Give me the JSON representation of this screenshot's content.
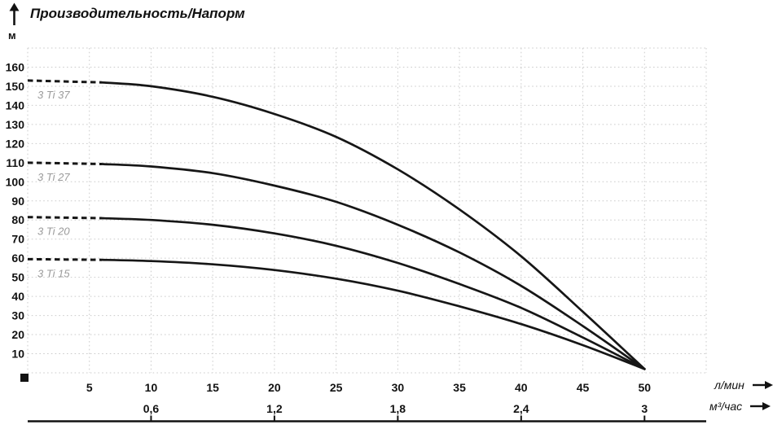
{
  "header": {
    "title": "Производительность/Напорм",
    "y_axis_unit": "м"
  },
  "axes": {
    "y_ticks": [
      10,
      20,
      30,
      40,
      50,
      60,
      70,
      80,
      90,
      100,
      110,
      120,
      130,
      140,
      150,
      160
    ],
    "x1": {
      "unit": "л/мин",
      "ticks": [
        5,
        10,
        15,
        20,
        25,
        30,
        35,
        40,
        45,
        50
      ]
    },
    "x2": {
      "unit": "м³/час",
      "ticks": [
        {
          "label": "0,6",
          "value": 0.6
        },
        {
          "label": "1,2",
          "value": 1.2
        },
        {
          "label": "1,8",
          "value": 1.8
        },
        {
          "label": "2,4",
          "value": 2.4
        },
        {
          "label": "3",
          "value": 3
        }
      ]
    }
  },
  "chart_data": {
    "type": "line",
    "title": "Производительность/Напорм",
    "ylabel": "м",
    "xlabel_primary": "л/мин",
    "xlabel_secondary": "м³/час",
    "xlim": [
      0,
      55
    ],
    "ylim": [
      0,
      170
    ],
    "x_gridline_step": 5,
    "y_gridline_step": 10,
    "grid": true,
    "x2_conversion_lmin_per_m3h": 16.6667,
    "series": [
      {
        "name": "3 Ti 37",
        "dashed_until_x": 6,
        "points": [
          [
            0,
            153
          ],
          [
            5,
            152.5
          ],
          [
            10,
            150
          ],
          [
            15,
            144.5
          ],
          [
            20,
            135.5
          ],
          [
            25,
            123.5
          ],
          [
            30,
            106.5
          ],
          [
            35,
            85.5
          ],
          [
            40,
            61
          ],
          [
            45,
            32
          ],
          [
            50,
            2
          ]
        ]
      },
      {
        "name": "3 Ti 27",
        "dashed_until_x": 6,
        "points": [
          [
            0,
            110
          ],
          [
            5,
            109.6
          ],
          [
            10,
            108
          ],
          [
            15,
            104.5
          ],
          [
            20,
            98
          ],
          [
            25,
            89.5
          ],
          [
            30,
            77.5
          ],
          [
            35,
            63
          ],
          [
            40,
            45.5
          ],
          [
            45,
            24.5
          ],
          [
            50,
            2
          ]
        ]
      },
      {
        "name": "3 Ti 20",
        "dashed_until_x": 6,
        "points": [
          [
            0,
            81.5
          ],
          [
            5,
            81.2
          ],
          [
            10,
            80
          ],
          [
            15,
            77.5
          ],
          [
            20,
            73
          ],
          [
            25,
            66.5
          ],
          [
            30,
            57.5
          ],
          [
            35,
            46.5
          ],
          [
            40,
            34
          ],
          [
            45,
            18.5
          ],
          [
            50,
            2
          ]
        ]
      },
      {
        "name": "3 Ti 15",
        "dashed_until_x": 6,
        "points": [
          [
            0,
            59.5
          ],
          [
            5,
            59.3
          ],
          [
            10,
            58.5
          ],
          [
            15,
            56.8
          ],
          [
            20,
            53.8
          ],
          [
            25,
            49.3
          ],
          [
            30,
            43
          ],
          [
            35,
            34.8
          ],
          [
            40,
            25.5
          ],
          [
            45,
            14.5
          ],
          [
            50,
            2
          ]
        ]
      }
    ]
  },
  "colors": {
    "text": "#121212",
    "curve": "#161616",
    "grid": "#cbcbcb",
    "series_label": "#9b9b9b"
  }
}
